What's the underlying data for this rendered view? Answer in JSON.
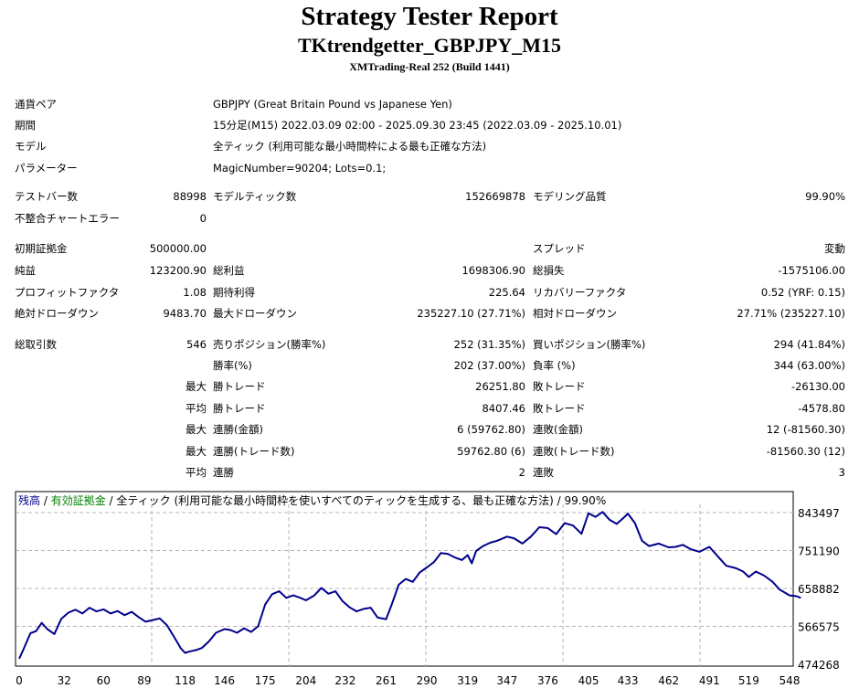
{
  "header": {
    "title": "Strategy Tester Report",
    "ea_name": "TKtrendgetter_GBPJPY_M15",
    "server": "XMTrading-Real 252 (Build 1441)"
  },
  "settings": [
    {
      "label": "通貨ペア",
      "value": "GBPJPY (Great Britain Pound vs Japanese Yen)"
    },
    {
      "label": "期間",
      "value": "15分足(M15) 2022.03.09 02:00 - 2025.09.30 23:45 (2022.03.09 - 2025.10.01)"
    },
    {
      "label": "モデル",
      "value": "全ティック (利用可能な最小時間枠による最も正確な方法)"
    },
    {
      "label": "パラメーター",
      "value": "MagicNumber=90204; Lots=0.1;"
    }
  ],
  "stats_rows": [
    {
      "c1l": "テストバー数",
      "c1v": "88998",
      "c2l": "モデルティック数",
      "c2v": "152669878",
      "c3l": "モデリング品質",
      "c3v": "99.90%"
    },
    {
      "c1l": "不整合チャートエラー",
      "c1v": "0",
      "c2l": "",
      "c2v": "",
      "c3l": "",
      "c3v": ""
    },
    {
      "gap": true,
      "c1l": "初期証拠金",
      "c1v": "500000.00",
      "c2l": "",
      "c2v": "",
      "c3l": "スプレッド",
      "c3v": "変動"
    },
    {
      "c1l": "純益",
      "c1v": "123200.90",
      "c2l": "総利益",
      "c2v": "1698306.90",
      "c3l": "総損失",
      "c3v": "-1575106.00"
    },
    {
      "c1l": "プロフィットファクタ",
      "c1v": "1.08",
      "c2l": "期待利得",
      "c2v": "225.64",
      "c3l": "リカバリーファクタ",
      "c3v": "0.52 (YRF: 0.15)"
    },
    {
      "c1l": "絶対ドローダウン",
      "c1v": "9483.70",
      "c2l": "最大ドローダウン",
      "c2v": "235227.10 (27.71%)",
      "c3l": "相対ドローダウン",
      "c3v": "27.71% (235227.10)"
    },
    {
      "gap": true,
      "c1l": "総取引数",
      "c1v": "546",
      "c2l": "売りポジション(勝率%)",
      "c2v": "252 (31.35%)",
      "c3l": "買いポジション(勝率%)",
      "c3v": "294 (41.84%)"
    },
    {
      "c1l": "",
      "c1v": "",
      "c2l": "勝率(%)",
      "c2v": "202 (37.00%)",
      "c3l": "負率 (%)",
      "c3v": "344 (63.00%)"
    },
    {
      "c1l": "",
      "c1v": "最大",
      "c2l": "勝トレード",
      "c2v": "26251.80",
      "c3l": "敗トレード",
      "c3v": "-26130.00"
    },
    {
      "c1l": "",
      "c1v": "平均",
      "c2l": "勝トレード",
      "c2v": "8407.46",
      "c3l": "敗トレード",
      "c3v": "-4578.80"
    },
    {
      "c1l": "",
      "c1v": "最大",
      "c2l": "連勝(金額)",
      "c2v": "6 (59762.80)",
      "c3l": "連敗(金額)",
      "c3v": "12 (-81560.30)"
    },
    {
      "c1l": "",
      "c1v": "最大",
      "c2l": "連勝(トレード数)",
      "c2v": "59762.80 (6)",
      "c3l": "連敗(トレード数)",
      "c3v": "-81560.30 (12)"
    },
    {
      "c1l": "",
      "c1v": "平均",
      "c2l": "連勝",
      "c2v": "2",
      "c3l": "連敗",
      "c3v": "3"
    }
  ],
  "chart_legend": {
    "balance": "残高",
    "sep1": " / ",
    "equity": "有効証拠金",
    "sep2": " / ",
    "rest": "全ティック (利用可能な最小時間枠を使いすべてのティックを生成する、最も正確な方法) / 99.90%",
    "balance_color": "#00008b",
    "equity_color": "#008000"
  },
  "chart_data": {
    "type": "line",
    "title": "",
    "xlabel": "",
    "ylabel": "",
    "xlim": [
      0,
      557
    ],
    "ylim": [
      474268,
      862000
    ],
    "x_ticks": [
      0,
      32,
      60,
      89,
      118,
      146,
      175,
      204,
      232,
      261,
      290,
      319,
      347,
      376,
      405,
      433,
      462,
      491,
      519,
      548
    ],
    "y_ticks": [
      474268,
      566575,
      658882,
      751190,
      843497
    ],
    "grid": true,
    "legend": "top-left",
    "line_color": "#00008b",
    "series": [
      {
        "name": "残高",
        "x": [
          0,
          3,
          8,
          12,
          16,
          20,
          25,
          30,
          35,
          40,
          45,
          50,
          55,
          60,
          65,
          70,
          75,
          80,
          85,
          90,
          95,
          100,
          105,
          110,
          115,
          118,
          122,
          126,
          130,
          135,
          140,
          146,
          150,
          155,
          160,
          165,
          170,
          175,
          180,
          185,
          190,
          195,
          200,
          204,
          210,
          215,
          220,
          225,
          230,
          235,
          240,
          245,
          250,
          255,
          261,
          265,
          270,
          275,
          280,
          285,
          290,
          295,
          300,
          305,
          310,
          315,
          319,
          322,
          325,
          330,
          335,
          340,
          347,
          352,
          358,
          364,
          370,
          376,
          382,
          388,
          394,
          400,
          405,
          410,
          415,
          420,
          425,
          430,
          433,
          438,
          443,
          448,
          455,
          462,
          467,
          472,
          478,
          484,
          491,
          497,
          503,
          510,
          515,
          519,
          524,
          530,
          536,
          541,
          548,
          553,
          556
        ],
        "values": [
          488000,
          510000,
          550000,
          555000,
          575000,
          560000,
          548000,
          585000,
          600000,
          607000,
          598000,
          612000,
          603000,
          608000,
          598000,
          604000,
          594000,
          602000,
          589000,
          578000,
          582000,
          586000,
          570000,
          542000,
          513000,
          502000,
          506000,
          509000,
          514000,
          530000,
          551000,
          560000,
          558000,
          551000,
          562000,
          553000,
          567000,
          620000,
          645000,
          652000,
          636000,
          642000,
          636000,
          630000,
          642000,
          660000,
          646000,
          652000,
          628000,
          613000,
          603000,
          609000,
          612000,
          588000,
          584000,
          620000,
          668000,
          682000,
          675000,
          698000,
          710000,
          723000,
          745000,
          743000,
          734000,
          728000,
          740000,
          720000,
          750000,
          762000,
          770000,
          775000,
          785000,
          781000,
          768000,
          785000,
          808000,
          806000,
          791000,
          818000,
          812000,
          792000,
          842000,
          833000,
          845000,
          826000,
          816000,
          831000,
          841000,
          818000,
          775000,
          762000,
          768000,
          759000,
          760000,
          765000,
          754000,
          748000,
          760000,
          737000,
          714000,
          708000,
          700000,
          687000,
          700000,
          690000,
          675000,
          656000,
          642000,
          640000,
          636000
        ]
      }
    ]
  }
}
